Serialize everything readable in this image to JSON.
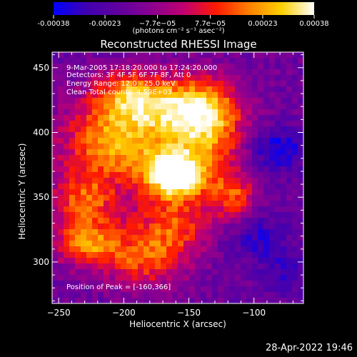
{
  "colorbar": {
    "ticks": [
      "-0.00038",
      "-0.00023",
      "−7.7e−05",
      "7.7e−05",
      "0.00023",
      "0.00038"
    ],
    "tick_values": [
      -0.00038,
      -0.00023,
      -7.7e-05,
      7.7e-05,
      0.00023,
      0.00038
    ],
    "units": "(photons cm⁻² s⁻¹ asec⁻²)",
    "colormap": [
      "#0000ff",
      "#4000b0",
      "#6000a0",
      "#8a0090",
      "#c00070",
      "#ff1a00",
      "#ff8000",
      "#ffd000",
      "#ffffff"
    ]
  },
  "chart_data": {
    "type": "heatmap",
    "title": "Reconstructed RHESSI Image",
    "xlabel": "Heliocentric X (arcsec)",
    "ylabel": "Heliocentric Y (arcsec)",
    "xlim": [
      -255,
      -62
    ],
    "ylim": [
      268,
      462
    ],
    "xticks": [
      -250,
      -200,
      -150,
      -100
    ],
    "yticks": [
      300,
      350,
      400,
      450
    ],
    "value_range": [
      -0.00038,
      0.00038
    ],
    "peak": [
      -160,
      366
    ],
    "annotations": [
      "9-Mar-2005 17:18:20.000 to 17:24:20.000",
      "Detectors: 3F 4F 5F 6F 7F 8F, Att 0",
      "Energy Range: 12.0 - 25.0 keV",
      "Clean     Total counts: 4.59E+03",
      "Position of Peak = [-160,366]"
    ],
    "blobs": [
      {
        "x": -162,
        "y": 367,
        "sx": 16,
        "sy": 13,
        "value": 0.00038
      },
      {
        "x": -205,
        "y": 392,
        "sx": 30,
        "sy": 22,
        "value": 0.00024
      },
      {
        "x": -150,
        "y": 418,
        "sx": 24,
        "sy": 16,
        "value": 0.0002
      },
      {
        "x": -195,
        "y": 428,
        "sx": 20,
        "sy": 14,
        "value": 0.00018
      },
      {
        "x": -230,
        "y": 345,
        "sx": 18,
        "sy": 16,
        "value": 0.00014
      },
      {
        "x": -228,
        "y": 313,
        "sx": 18,
        "sy": 12,
        "value": 0.00016
      },
      {
        "x": -185,
        "y": 300,
        "sx": 22,
        "sy": 14,
        "value": 0.0001
      },
      {
        "x": -135,
        "y": 395,
        "sx": 20,
        "sy": 30,
        "value": 0.00014
      },
      {
        "x": -165,
        "y": 327,
        "sx": 22,
        "sy": 16,
        "value": 0.00012
      },
      {
        "x": -115,
        "y": 350,
        "sx": 12,
        "sy": 12,
        "value": 8e-05
      },
      {
        "x": -82,
        "y": 387,
        "sx": 14,
        "sy": 12,
        "value": -0.00022
      },
      {
        "x": -97,
        "y": 318,
        "sx": 16,
        "sy": 14,
        "value": -0.00014
      },
      {
        "x": -75,
        "y": 290,
        "sx": 12,
        "sy": 12,
        "value": -0.00012
      }
    ],
    "background_value": -0.00016
  },
  "footer": {
    "timestamp": "28-Apr-2022 19:46"
  }
}
